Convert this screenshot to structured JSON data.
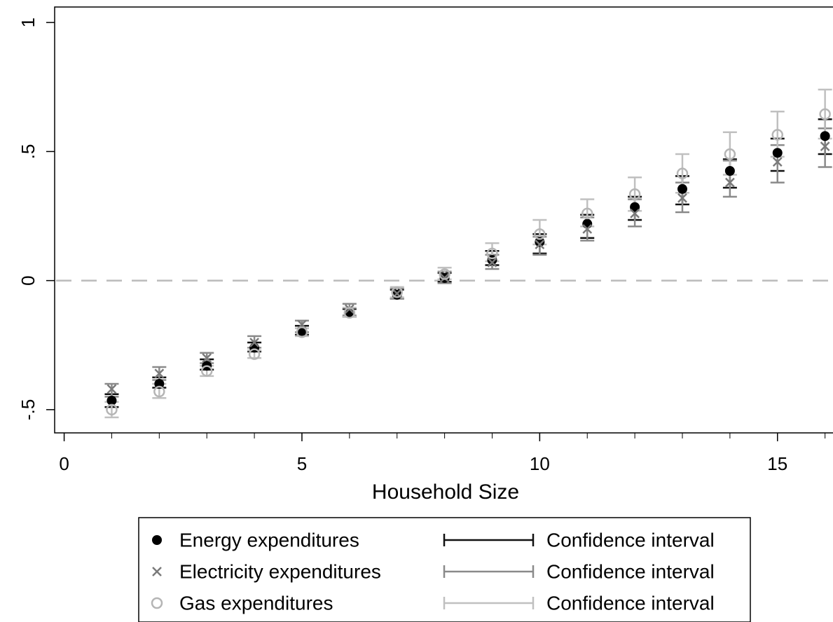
{
  "chart_data": {
    "type": "scatter",
    "title": "",
    "xlabel": "Household Size",
    "ylabel": "",
    "xlim": [
      -0.2,
      16.3
    ],
    "ylim": [
      -0.59,
      1.06
    ],
    "xticks": [
      0,
      5,
      10,
      15
    ],
    "xtick_labels": [
      "0",
      "5",
      "10",
      "15"
    ],
    "yticks": [
      -0.5,
      0,
      0.5,
      1
    ],
    "ytick_labels": [
      "-.5",
      "0",
      ".5",
      "1"
    ],
    "reference_line": {
      "y": 0,
      "style": "dashed",
      "color": "#bbbbbb"
    },
    "x": [
      1,
      2,
      3,
      4,
      5,
      6,
      7,
      8,
      9,
      10,
      11,
      12,
      13,
      14,
      15,
      16
    ],
    "series": [
      {
        "name": "Energy expenditures",
        "marker": "filled-circle",
        "color": "#000000",
        "ci_color": "#111111",
        "values": [
          -0.465,
          -0.4,
          -0.33,
          -0.26,
          -0.195,
          -0.125,
          -0.055,
          0.01,
          0.08,
          0.15,
          0.22,
          0.285,
          0.355,
          0.425,
          0.495,
          0.56
        ],
        "ci_low": [
          -0.49,
          -0.415,
          -0.345,
          -0.275,
          -0.21,
          -0.14,
          -0.07,
          -0.005,
          0.06,
          0.105,
          0.165,
          0.235,
          0.295,
          0.36,
          0.425,
          0.49
        ],
        "ci_high": [
          -0.44,
          -0.375,
          -0.305,
          -0.24,
          -0.175,
          -0.11,
          -0.035,
          0.03,
          0.115,
          0.18,
          0.255,
          0.325,
          0.405,
          0.47,
          0.55,
          0.625
        ]
      },
      {
        "name": "Electricity expenditures",
        "marker": "x",
        "color": "#7a7a7a",
        "ci_color": "#8a8a8a",
        "values": [
          -0.42,
          -0.36,
          -0.3,
          -0.24,
          -0.17,
          -0.11,
          -0.05,
          0.01,
          0.07,
          0.14,
          0.2,
          0.26,
          0.32,
          0.38,
          0.46,
          0.52
        ],
        "ci_low": [
          -0.45,
          -0.385,
          -0.32,
          -0.26,
          -0.2,
          -0.135,
          -0.07,
          -0.01,
          0.045,
          0.1,
          0.155,
          0.21,
          0.265,
          0.325,
          0.38,
          0.44
        ],
        "ci_high": [
          -0.4,
          -0.335,
          -0.28,
          -0.215,
          -0.155,
          -0.09,
          -0.03,
          0.035,
          0.1,
          0.17,
          0.245,
          0.315,
          0.38,
          0.465,
          0.525,
          0.59
        ]
      },
      {
        "name": "Gas expenditures",
        "marker": "hollow-circle",
        "color": "#b5b5b5",
        "ci_color": "#c0c0c0",
        "values": [
          -0.5,
          -0.43,
          -0.35,
          -0.285,
          -0.2,
          -0.125,
          -0.045,
          0.025,
          0.105,
          0.18,
          0.26,
          0.335,
          0.415,
          0.49,
          0.565,
          0.645
        ],
        "ci_low": [
          -0.53,
          -0.455,
          -0.37,
          -0.3,
          -0.215,
          -0.14,
          -0.065,
          0.005,
          0.075,
          0.14,
          0.21,
          0.27,
          0.34,
          0.41,
          0.48,
          0.55
        ],
        "ci_high": [
          -0.47,
          -0.4,
          -0.33,
          -0.27,
          -0.185,
          -0.105,
          -0.025,
          0.05,
          0.145,
          0.235,
          0.315,
          0.4,
          0.49,
          0.575,
          0.655,
          0.74
        ]
      }
    ],
    "legend": {
      "placement": "bottom",
      "ci_label": "Confidence interval",
      "items": [
        {
          "label": "Energy expenditures",
          "marker": "filled-circle",
          "color": "#000000",
          "ci_label": "Confidence interval",
          "ci_color": "#111111"
        },
        {
          "label": "Electricity expenditures",
          "marker": "x",
          "color": "#7a7a7a",
          "ci_label": "Confidence interval",
          "ci_color": "#8a8a8a"
        },
        {
          "label": "Gas expenditures",
          "marker": "hollow-circle",
          "color": "#b5b5b5",
          "ci_label": "Confidence interval",
          "ci_color": "#c0c0c0"
        }
      ]
    }
  }
}
